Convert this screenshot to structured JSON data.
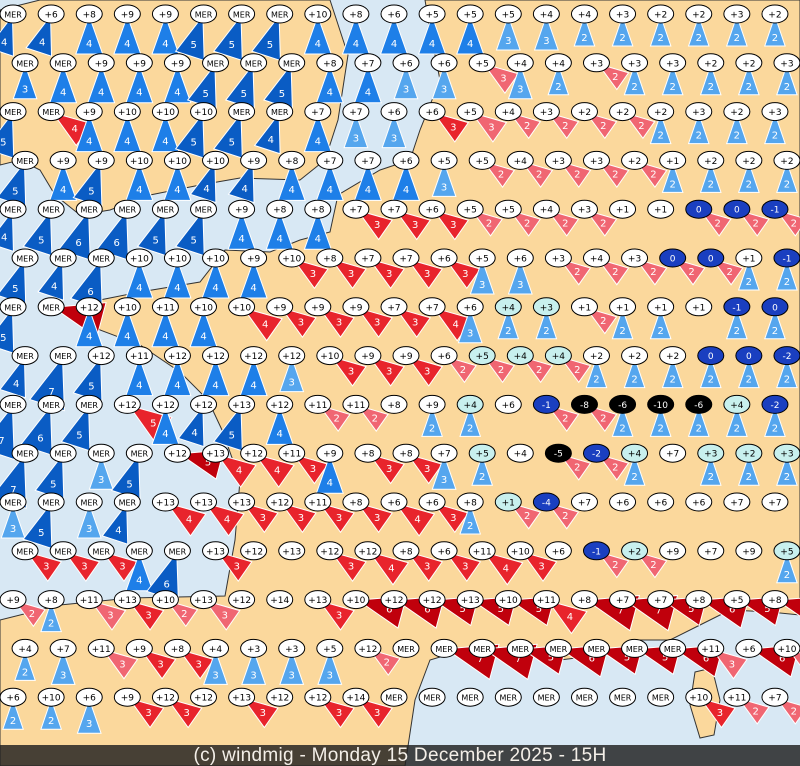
{
  "caption": "(c) windmig - Monday 15 December 2025 - 15H",
  "colors": {
    "sea": "#d8e8f4",
    "land": "#fbd89c",
    "border": "#333333",
    "wind_blue": "#1e7fe8",
    "wind_dark_blue": "#0a5cc4",
    "wind_light_blue": "#55a6ee",
    "wind_red": "#e8242c",
    "wind_pink": "#f06672",
    "wind_dark_red": "#c0000c",
    "label_fill": "#ffffff",
    "label_cold": "#1a3fc0",
    "label_freezing": "#000000",
    "label_mild": "#c8f0ee"
  },
  "legend_note": "MER",
  "stations_rows": [
    "MER:4d +6:4d +8:4b +9:4b +9:4b MER:5d MER:5d MER:5d +10:4b +8:4b +6:4b +5:4b +5:4b +5:3l +4:3l +4:2l +3:2l +2:2l +2:2l +3:2l +2:2l",
    "MER:3b MER:4b +9:4b +9:4b +9:4b MER:5d MER:5d MER:5d +8:4b +7:4b +6:3l +6:3l +5:3p +4:3l +4:2l +3:2p +3:2l +3:2l +2:2l +2:2l +3:2l",
    "MER:5d MER:4r +9:4b +10:4b +10:4b +10:5d MER:5d MER:4d +7:4b +7:3l +6:3l +6:3r +5:3p +4:2p +3:2p +2:2p +2:2p +2:2l +3:2l +2:2l +3:2l",
    "MER:5d +9:4b +9:5d +10:4b +10:4b +10:4d +9:4d +8:4b +7:4b +7:4b +6:4b +5:3l +5:2p +4:2p +3:2p +3:2p +2:2p +1:2l +2:2l +2:2l +2:2l",
    "MER:4d MER:5d MER:6d MER:6d MER:5d MER:5d +9:4b +8:4b +8:4b +7:3r +7:3r +6:3r +5:2p +5:2p +4:2p +3:2p +1 +1 0:2p:B 0:2p:B -1:2p:B",
    "MER:5d MER:4d MER:6d +10:4b +10:4b +10:4b +9:4b +10:3r +8:3r +7:3r +7:3r +6:3r +5:3l +6:3l +3:2p +4:2p +3:2p 0:2p:B 0:2p:B +1:2l -1:2l:B",
    "MER:5d MER:7k +12:4b +10:4b +11:4b +10:4b +10:4r +9:3r +9:3r +9:3r +7:3r +7:4r +6:3l +4:2l:C +3:2l:C +1:2p +1:2l +1:2l +1 -1:2l:B 0:2l:B",
    "MER:4d MER:7d +12:5d +11:4b +12:4b +12:4b +12:4b +12:3l +10:3r +9:3r +9:3r +6:2p +5:2p:C +4:2p:C +4:2p:C +2:2l +2:2l +2:2l 0:2l:B 0:2l:B -2:2l:B",
    "MER:7d MER:6d MER:5d +12:5r +12:4b +12:4d +13:5d +12:4b +11:2p +11:2p +8 +9:2l +4:2l:C +6 -1:2p:B -8:2p:K -6:2l:K -10:2l:K -6:2l:K +4:2l:C -2:2l:B",
    "MER:7d MER:5d MER:3l MER:5d +12:5k +13:4r +12:4r +11:3r +9:4b +8:3r +8:3r +7:3l +5:2l:C +4 -5:2p:K -2:2p:B +4:2l:C +7 +3:2l:C +2:2l:C +3:2l:C",
    "MER:3l MER:5d MER:3l MER:4d +13:4r +13:4r +13:3r +12:3r +11:3r +8:3r +6:4r +6:3r +8:2l +1:2p:C -4:2p:B +7 +6 +6 +6 +7 +7",
    "MER:3r MER:3r MER:3r MER:4b MER:6d +13:3r +12 +13 +12:3r +12:4r +8:3r +6:3r +11:4r +10:3r +6 -1:2p:B +2:2p:C +9 +7 +9 +5:2l:C",
    "+9:2p +8:2l +11:3p +13:3r +10:2p +13:3p +12 +14 +13:3r +10:6k +12:6k +12:5k +13:5k +10:5k +11:4r +8:7k +7:7k +7:5k +8:6k +5:5k +8:5k",
    "+4:2l +7:3l +11:3p +9:3r +8:3r +4:3l +3:3l +3:3l +5:3l +12:2p MER MER:7k MER:7k MER:5k MER:6k MER:5k MER:5k MER:6k +11:3p +6:6k +10:2p",
    "+6:2l +10:2l +6:3l +9:3r +12:3r +12 +13:3r +12 +12:3r +14:3r MER MER MER MER MER MER MER MER +10:3r +11:2p +7:2p"
  ]
}
